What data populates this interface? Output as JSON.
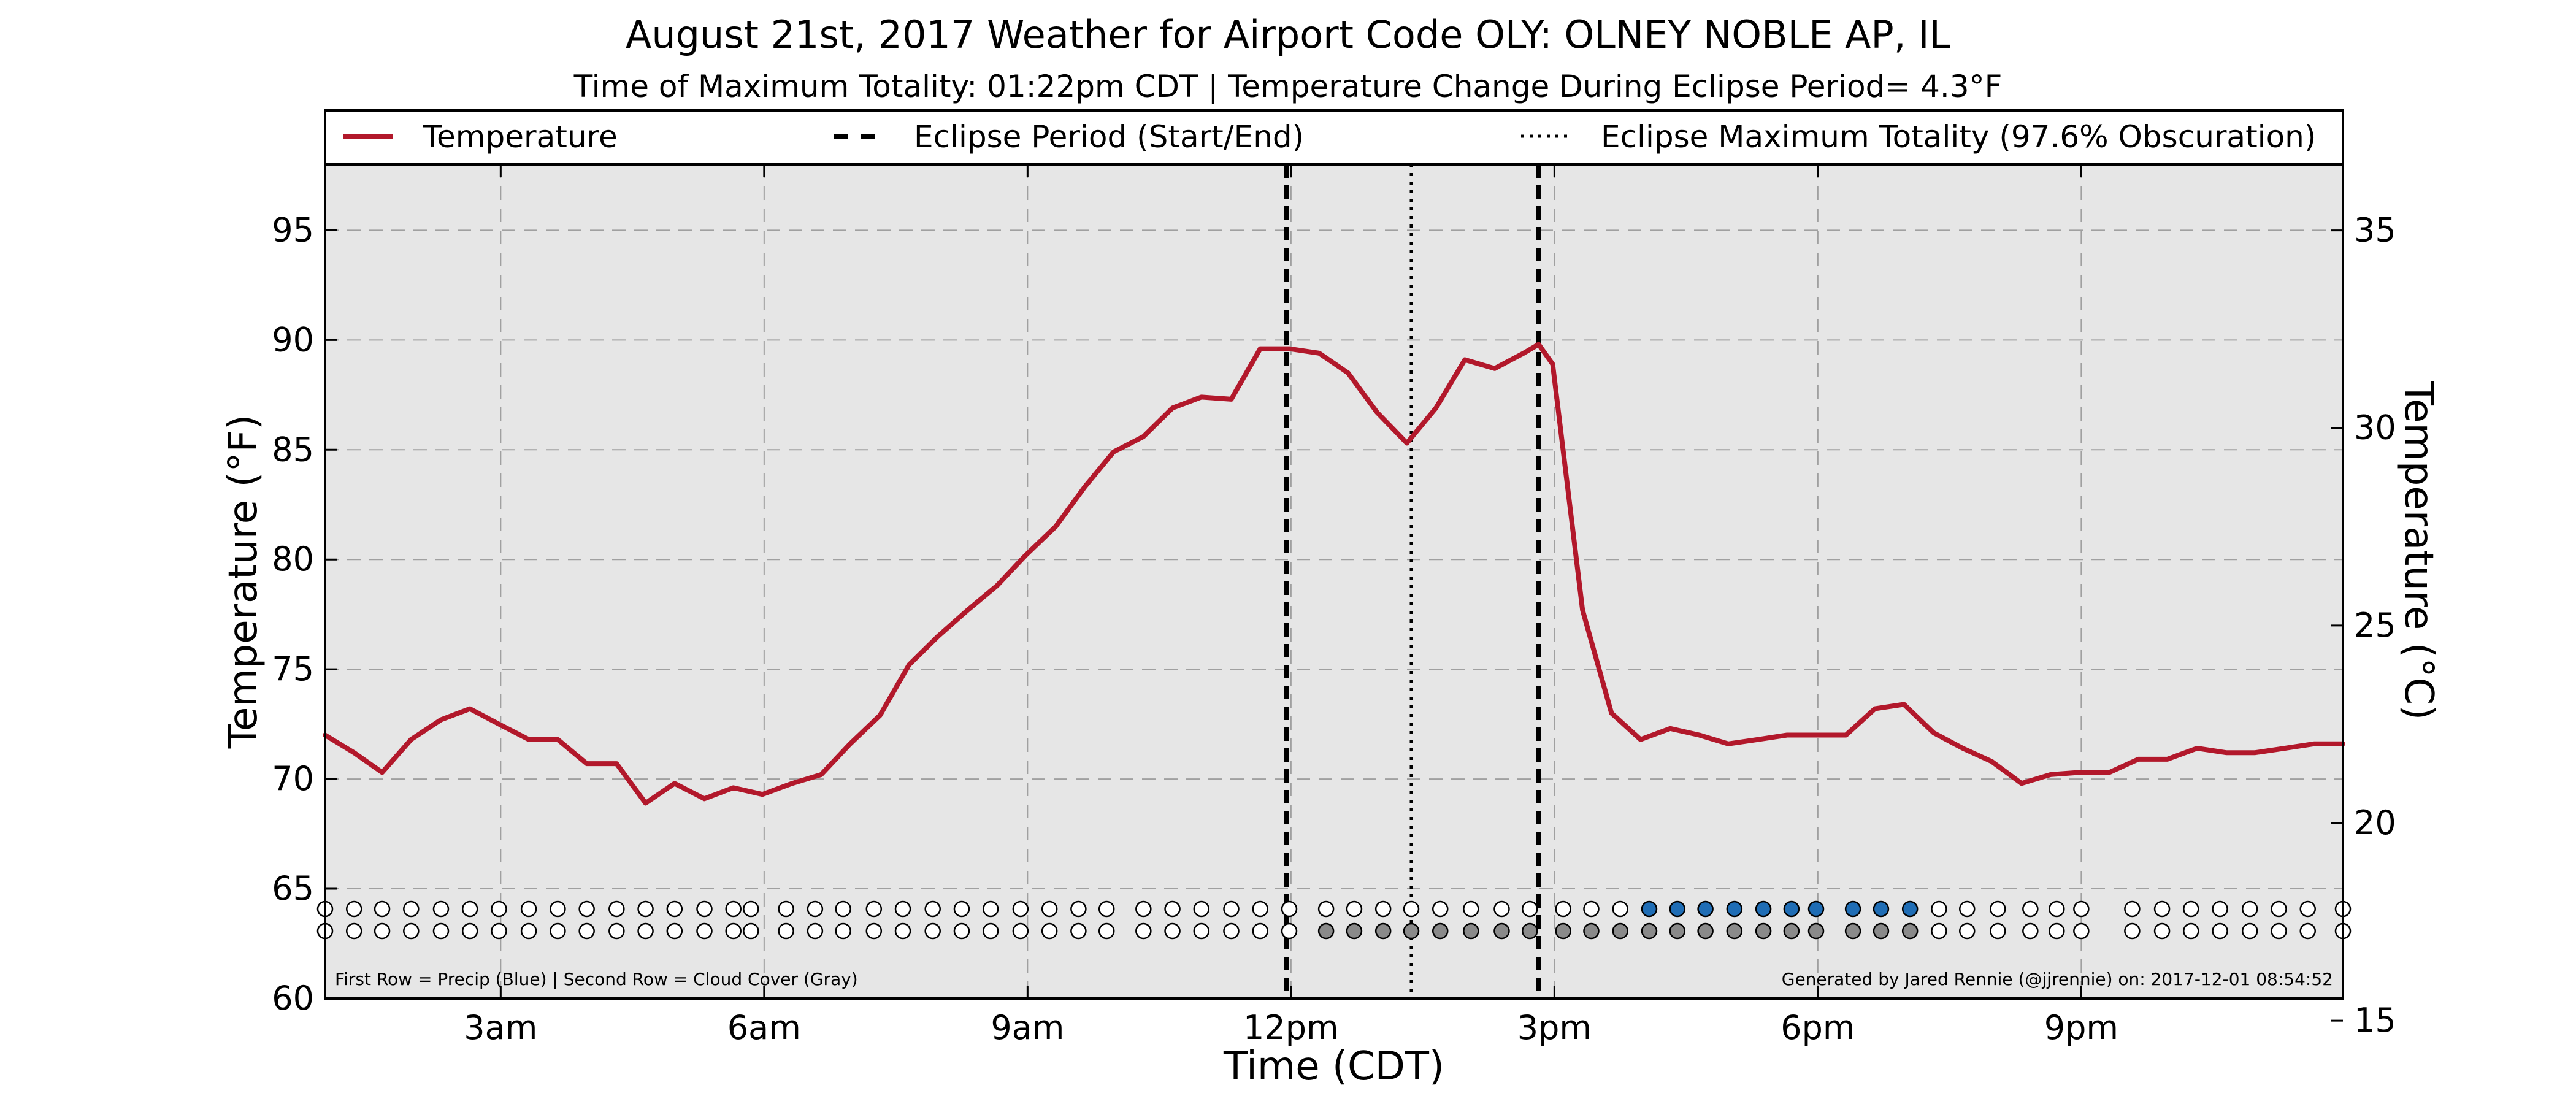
{
  "title": "August 21st, 2017 Weather for Airport Code OLY: OLNEY NOBLE AP, IL",
  "subtitle": "Time of Maximum Totality: 01:22pm CDT | Temperature Change During Eclipse Period= 4.3°F",
  "legend": {
    "temperature": "Temperature",
    "eclipse_period": "Eclipse Period (Start/End)",
    "eclipse_max": "Eclipse Maximum Totality (97.6% Obscuration)"
  },
  "footnote_left": "First Row = Precip (Blue) | Second Row = Cloud Cover (Gray)",
  "footnote_right": "Generated by Jared Rennie (@jjrennie) on: 2017-12-01 08:54:52",
  "colors": {
    "temperature_line": "#b2182b",
    "plot_background": "#e6e6e6",
    "precip": "#1f6db5",
    "cloud": "#8a8a8a",
    "empty_marker": "#ffffff"
  },
  "chart_data": {
    "type": "line",
    "xlabel": "Time (CDT)",
    "ylabel": "Temperature (°F)",
    "ylabel_right": "Temperature (°C)",
    "xlim": [
      1.0,
      23.98
    ],
    "ylim": [
      60,
      98
    ],
    "ylim_right_c": [
      15.56,
      36.67
    ],
    "x_ticks": [
      {
        "x": 3,
        "label": "3am"
      },
      {
        "x": 6,
        "label": "6am"
      },
      {
        "x": 9,
        "label": "9am"
      },
      {
        "x": 12,
        "label": "12pm"
      },
      {
        "x": 15,
        "label": "3pm"
      },
      {
        "x": 18,
        "label": "6pm"
      },
      {
        "x": 21,
        "label": "9pm"
      }
    ],
    "y_ticks": [
      60,
      65,
      70,
      75,
      80,
      85,
      90,
      95
    ],
    "y_ticks_right": [
      15,
      20,
      25,
      30,
      35
    ],
    "grid": true,
    "legend_position": "top",
    "eclipse_start": 11.95,
    "eclipse_end": 14.82,
    "eclipse_max": 13.37,
    "series": [
      {
        "name": "Temperature",
        "x": [
          1.0,
          1.33,
          1.65,
          1.98,
          2.32,
          2.65,
          2.98,
          3.32,
          3.65,
          3.98,
          4.32,
          4.65,
          4.98,
          5.32,
          5.65,
          5.98,
          6.32,
          6.65,
          6.98,
          7.32,
          7.65,
          7.98,
          8.32,
          8.65,
          8.98,
          9.32,
          9.65,
          9.98,
          10.32,
          10.65,
          10.98,
          11.32,
          11.65,
          11.98,
          12.32,
          12.65,
          12.98,
          13.32,
          13.65,
          13.98,
          14.32,
          14.65,
          14.82,
          14.98,
          15.32,
          15.65,
          15.98,
          16.32,
          16.65,
          16.98,
          17.32,
          17.65,
          17.98,
          18.32,
          18.65,
          18.98,
          19.32,
          19.65,
          19.98,
          20.32,
          20.65,
          20.98,
          21.32,
          21.65,
          21.98,
          22.32,
          22.65,
          22.98,
          23.32,
          23.65,
          23.98
        ],
        "y": [
          72.0,
          71.2,
          70.3,
          71.8,
          72.7,
          73.2,
          72.5,
          71.8,
          71.8,
          70.7,
          70.7,
          68.9,
          69.8,
          69.1,
          69.6,
          69.3,
          69.8,
          70.2,
          71.6,
          72.9,
          75.2,
          76.5,
          77.7,
          78.8,
          80.2,
          81.5,
          83.3,
          84.9,
          85.6,
          86.9,
          87.4,
          87.3,
          89.6,
          89.6,
          89.4,
          88.5,
          86.7,
          85.3,
          86.9,
          89.1,
          88.7,
          89.4,
          89.8,
          88.9,
          77.7,
          73.0,
          71.8,
          72.3,
          72.0,
          71.6,
          71.8,
          72.0,
          72.0,
          72.0,
          73.2,
          73.4,
          72.1,
          71.4,
          70.8,
          69.8,
          70.2,
          70.3,
          70.3,
          70.9,
          70.9,
          71.4,
          71.2,
          71.2,
          71.4,
          71.6,
          71.6
        ]
      }
    ],
    "precip_row_x": [
      1.0,
      1.33,
      1.65,
      1.98,
      2.32,
      2.65,
      2.98,
      3.32,
      3.65,
      3.98,
      4.32,
      4.65,
      4.98,
      5.32,
      5.65,
      5.85,
      6.25,
      6.58,
      6.9,
      7.25,
      7.58,
      7.92,
      8.25,
      8.58,
      8.92,
      9.25,
      9.58,
      9.9,
      10.32,
      10.65,
      10.98,
      11.32,
      11.65,
      11.98,
      12.4,
      12.72,
      13.05,
      13.37,
      13.7,
      14.05,
      14.4,
      14.72,
      15.1,
      15.42,
      15.75,
      16.08,
      16.4,
      16.72,
      17.05,
      17.38,
      17.7,
      17.98,
      18.4,
      18.72,
      19.05,
      19.38,
      19.7,
      20.05,
      20.42,
      20.72,
      21.0,
      21.58,
      21.92,
      22.25,
      22.58,
      22.92,
      23.25,
      23.58,
      23.98
    ],
    "precip_blue_x": [
      16.08,
      16.4,
      16.72,
      17.05,
      17.38,
      17.7,
      17.98,
      18.4,
      18.72,
      19.05
    ],
    "cloud_row_x": [
      1.0,
      1.33,
      1.65,
      1.98,
      2.32,
      2.65,
      2.98,
      3.32,
      3.65,
      3.98,
      4.32,
      4.65,
      4.98,
      5.32,
      5.65,
      5.85,
      6.25,
      6.58,
      6.9,
      7.25,
      7.58,
      7.92,
      8.25,
      8.58,
      8.92,
      9.25,
      9.58,
      9.9,
      10.32,
      10.65,
      10.98,
      11.32,
      11.65,
      11.98,
      12.4,
      12.72,
      13.05,
      13.37,
      13.7,
      14.05,
      14.4,
      14.72,
      15.1,
      15.42,
      15.75,
      16.08,
      16.4,
      16.72,
      17.05,
      17.38,
      17.7,
      17.98,
      18.4,
      18.72,
      19.05,
      19.38,
      19.7,
      20.05,
      20.42,
      20.72,
      21.0,
      21.58,
      21.92,
      22.25,
      22.58,
      22.92,
      23.25,
      23.58,
      23.98
    ],
    "cloud_gray_x": [
      12.4,
      12.72,
      13.05,
      13.37,
      13.7,
      14.05,
      14.4,
      14.72,
      15.1,
      15.42,
      15.75,
      16.08,
      16.4,
      16.72,
      17.05,
      17.38,
      17.7,
      17.98,
      18.4,
      18.72,
      19.05
    ]
  }
}
